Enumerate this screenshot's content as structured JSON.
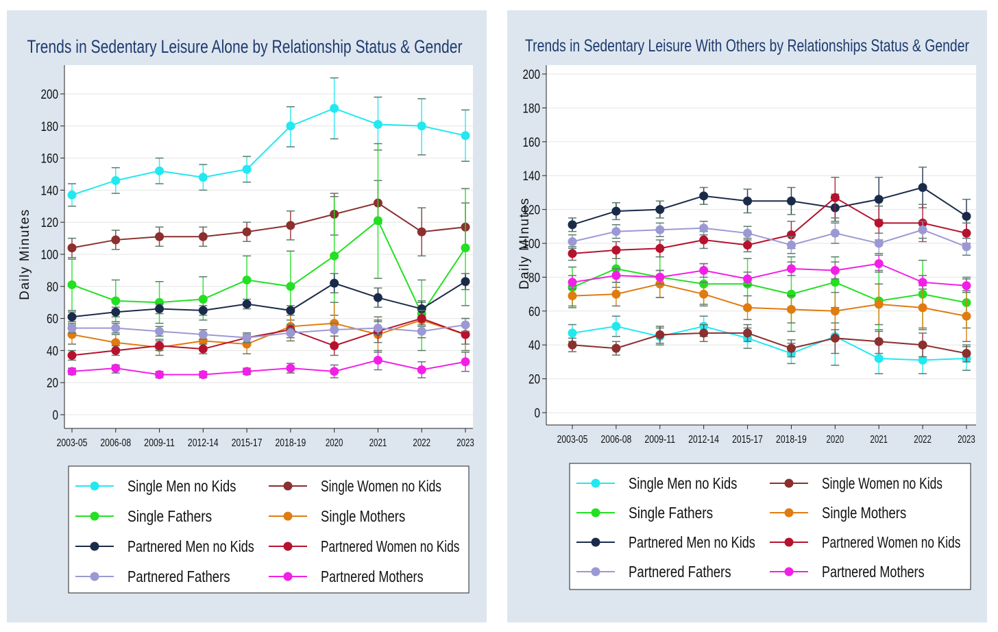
{
  "chart_data": [
    {
      "type": "line",
      "title": "Trends in Sedentary Leisure Alone by Relationship Status & Gender",
      "xlabel": "",
      "ylabel": "Daily Minutes",
      "ylim": [
        0,
        200
      ],
      "yticks": [
        "0",
        "20",
        "40",
        "60",
        "80",
        "100",
        "120",
        "140",
        "160",
        "180",
        "200"
      ],
      "categories": [
        "2003-05",
        "2006-08",
        "2009-11",
        "2012-14",
        "2015-17",
        "2018-19",
        "2020",
        "2021",
        "2022",
        "2023"
      ],
      "grid": true,
      "legend_position": "bottom",
      "error_bars": true,
      "series": [
        {
          "name": "Single Men no Kids",
          "color": "#22e8f0",
          "values": [
            137,
            146,
            152,
            148,
            153,
            180,
            191,
            181,
            180,
            174
          ],
          "lower": [
            130,
            138,
            144,
            140,
            145,
            167,
            172,
            165,
            162,
            158
          ],
          "upper": [
            144,
            154,
            160,
            156,
            161,
            192,
            210,
            198,
            197,
            190
          ]
        },
        {
          "name": "Single Women no Kids",
          "color": "#8b2f2f",
          "values": [
            104,
            109,
            111,
            111,
            114,
            118,
            125,
            132,
            114,
            117
          ],
          "lower": [
            98,
            103,
            105,
            105,
            108,
            109,
            112,
            119,
            99,
            103
          ],
          "upper": [
            110,
            115,
            117,
            117,
            120,
            127,
            138,
            146,
            129,
            132
          ]
        },
        {
          "name": "Single Fathers",
          "color": "#22e022",
          "values": [
            81,
            71,
            70,
            72,
            84,
            80,
            99,
            121,
            63,
            104
          ],
          "lower": [
            65,
            58,
            57,
            59,
            70,
            59,
            62,
            85,
            40,
            68
          ],
          "upper": [
            97,
            84,
            83,
            86,
            99,
            102,
            136,
            169,
            84,
            141
          ]
        },
        {
          "name": "Single Mothers",
          "color": "#e07b10",
          "values": [
            50,
            45,
            42,
            46,
            44,
            55,
            57,
            50,
            59,
            50
          ],
          "lower": [
            44,
            40,
            37,
            41,
            38,
            46,
            44,
            39,
            48,
            40
          ],
          "upper": [
            56,
            50,
            47,
            51,
            50,
            64,
            70,
            61,
            70,
            60
          ]
        },
        {
          "name": "Partnered Men no Kids",
          "color": "#1a2b4a",
          "values": [
            61,
            64,
            66,
            65,
            69,
            65,
            82,
            73,
            66,
            83
          ],
          "lower": [
            58,
            61,
            63,
            62,
            66,
            62,
            76,
            67,
            61,
            78
          ],
          "upper": [
            64,
            67,
            69,
            68,
            72,
            68,
            88,
            79,
            71,
            88
          ]
        },
        {
          "name": "Partnered Women no Kids",
          "color": "#b5122e",
          "values": [
            37,
            40,
            43,
            41,
            48,
            53,
            43,
            52,
            60,
            50
          ],
          "lower": [
            34,
            37,
            40,
            38,
            45,
            50,
            37,
            45,
            55,
            44
          ],
          "upper": [
            40,
            43,
            46,
            44,
            51,
            56,
            49,
            59,
            65,
            56
          ]
        },
        {
          "name": "Partnered Fathers",
          "color": "#9b99d4",
          "values": [
            54,
            54,
            52,
            50,
            48,
            51,
            53,
            54,
            52,
            56
          ],
          "lower": [
            51,
            51,
            49,
            47,
            45,
            48,
            49,
            50,
            48,
            52
          ],
          "upper": [
            57,
            57,
            55,
            53,
            51,
            54,
            57,
            58,
            56,
            60
          ]
        },
        {
          "name": "Partnered Mothers",
          "color": "#f21fe6",
          "values": [
            27,
            29,
            25,
            25,
            27,
            29,
            27,
            34,
            28,
            33
          ],
          "lower": [
            25,
            26,
            23,
            23,
            25,
            26,
            23,
            28,
            23,
            27
          ],
          "upper": [
            29,
            31,
            27,
            27,
            29,
            32,
            31,
            40,
            33,
            39
          ]
        }
      ]
    },
    {
      "type": "line",
      "title": "Trends in Sedentary Leisure With Others by Relationships Status & Gender",
      "xlabel": "",
      "ylabel": "Daily MInutes",
      "ylim": [
        0,
        200
      ],
      "yticks": [
        "0",
        "20",
        "40",
        "60",
        "80",
        "100",
        "120",
        "140",
        "160",
        "180",
        "200"
      ],
      "categories": [
        "2003-05",
        "2006-08",
        "2009-11",
        "2012-14",
        "2015-17",
        "2018-19",
        "2020",
        "2021",
        "2022",
        "2023"
      ],
      "grid": true,
      "legend_position": "bottom",
      "error_bars": true,
      "series": [
        {
          "name": "Single Men no Kids",
          "color": "#22e8f0",
          "values": [
            47,
            51,
            45,
            51,
            44,
            35,
            45,
            32,
            31,
            32
          ],
          "lower": [
            42,
            45,
            40,
            45,
            38,
            29,
            28,
            23,
            23,
            25
          ],
          "upper": [
            52,
            57,
            50,
            57,
            50,
            41,
            62,
            41,
            39,
            39
          ]
        },
        {
          "name": "Single Women no Kids",
          "color": "#8b2f2f",
          "values": [
            40,
            38,
            46,
            47,
            47,
            38,
            44,
            42,
            40,
            35
          ],
          "lower": [
            36,
            34,
            41,
            42,
            42,
            33,
            35,
            35,
            33,
            30
          ],
          "upper": [
            44,
            42,
            51,
            52,
            52,
            43,
            53,
            49,
            47,
            40
          ]
        },
        {
          "name": "Single Fathers",
          "color": "#22e022",
          "values": [
            74,
            85,
            80,
            76,
            76,
            70,
            77,
            66,
            70,
            65
          ],
          "lower": [
            62,
            74,
            68,
            64,
            61,
            48,
            62,
            48,
            50,
            50
          ],
          "upper": [
            86,
            96,
            92,
            88,
            91,
            92,
            92,
            84,
            90,
            80
          ]
        },
        {
          "name": "Single Mothers",
          "color": "#e07b10",
          "values": [
            69,
            70,
            76,
            70,
            62,
            61,
            60,
            64,
            62,
            57
          ],
          "lower": [
            63,
            63,
            68,
            63,
            55,
            53,
            49,
            52,
            49,
            42
          ],
          "upper": [
            75,
            77,
            84,
            77,
            69,
            69,
            71,
            76,
            75,
            72
          ]
        },
        {
          "name": "Partnered Men no Kids",
          "color": "#1a2b4a",
          "values": [
            111,
            119,
            120,
            128,
            125,
            125,
            121,
            126,
            133,
            116
          ],
          "lower": [
            107,
            114,
            115,
            123,
            118,
            117,
            113,
            114,
            121,
            106
          ],
          "upper": [
            115,
            124,
            125,
            133,
            132,
            133,
            129,
            139,
            145,
            126
          ]
        },
        {
          "name": "Partnered Women no Kids",
          "color": "#b5122e",
          "values": [
            94,
            96,
            97,
            102,
            99,
            105,
            127,
            112,
            112,
            106
          ],
          "lower": [
            90,
            91,
            92,
            97,
            95,
            97,
            115,
            102,
            101,
            100
          ],
          "upper": [
            98,
            101,
            102,
            107,
            103,
            113,
            139,
            122,
            123,
            112
          ]
        },
        {
          "name": "Partnered Fathers",
          "color": "#9b99d4",
          "values": [
            101,
            107,
            108,
            109,
            106,
            99,
            106,
            100,
            108,
            98
          ],
          "lower": [
            97,
            103,
            104,
            105,
            102,
            94,
            100,
            94,
            103,
            93
          ],
          "upper": [
            105,
            111,
            112,
            113,
            110,
            104,
            112,
            106,
            113,
            103
          ]
        },
        {
          "name": "Partnered Mothers",
          "color": "#f21fe6",
          "values": [
            77,
            81,
            80,
            84,
            79,
            85,
            84,
            88,
            77,
            75
          ],
          "lower": [
            73,
            77,
            76,
            80,
            75,
            81,
            79,
            83,
            73,
            71
          ],
          "upper": [
            81,
            85,
            84,
            88,
            83,
            89,
            89,
            93,
            81,
            79
          ]
        }
      ]
    }
  ]
}
